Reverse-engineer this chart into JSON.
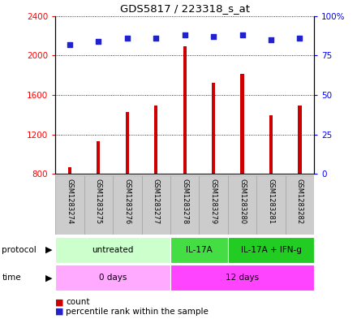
{
  "title": "GDS5817 / 223318_s_at",
  "samples": [
    "GSM1283274",
    "GSM1283275",
    "GSM1283276",
    "GSM1283277",
    "GSM1283278",
    "GSM1283279",
    "GSM1283280",
    "GSM1283281",
    "GSM1283282"
  ],
  "counts": [
    870,
    1130,
    1430,
    1490,
    2090,
    1720,
    1810,
    1390,
    1490
  ],
  "percentiles": [
    82,
    84,
    86,
    86,
    88,
    87,
    88,
    85,
    86
  ],
  "ylim_left": [
    800,
    2400
  ],
  "ylim_right": [
    0,
    100
  ],
  "yticks_left": [
    800,
    1200,
    1600,
    2000,
    2400
  ],
  "yticks_right": [
    0,
    25,
    50,
    75,
    100
  ],
  "bar_color": "#cc0000",
  "dot_color": "#2222cc",
  "bar_bottom": 800,
  "protocol_groups": [
    {
      "label": "untreated",
      "start": 0,
      "end": 4,
      "color": "#ccffcc"
    },
    {
      "label": "IL-17A",
      "start": 4,
      "end": 6,
      "color": "#44dd44"
    },
    {
      "label": "IL-17A + IFN-g",
      "start": 6,
      "end": 9,
      "color": "#22cc22"
    }
  ],
  "time_groups": [
    {
      "label": "0 days",
      "start": 0,
      "end": 4,
      "color": "#ffaaff"
    },
    {
      "label": "12 days",
      "start": 4,
      "end": 9,
      "color": "#ff44ff"
    }
  ],
  "legend_count_label": "count",
  "legend_percentile_label": "percentile rank within the sample",
  "sample_box_color": "#cccccc",
  "sample_box_edge": "#aaaaaa"
}
